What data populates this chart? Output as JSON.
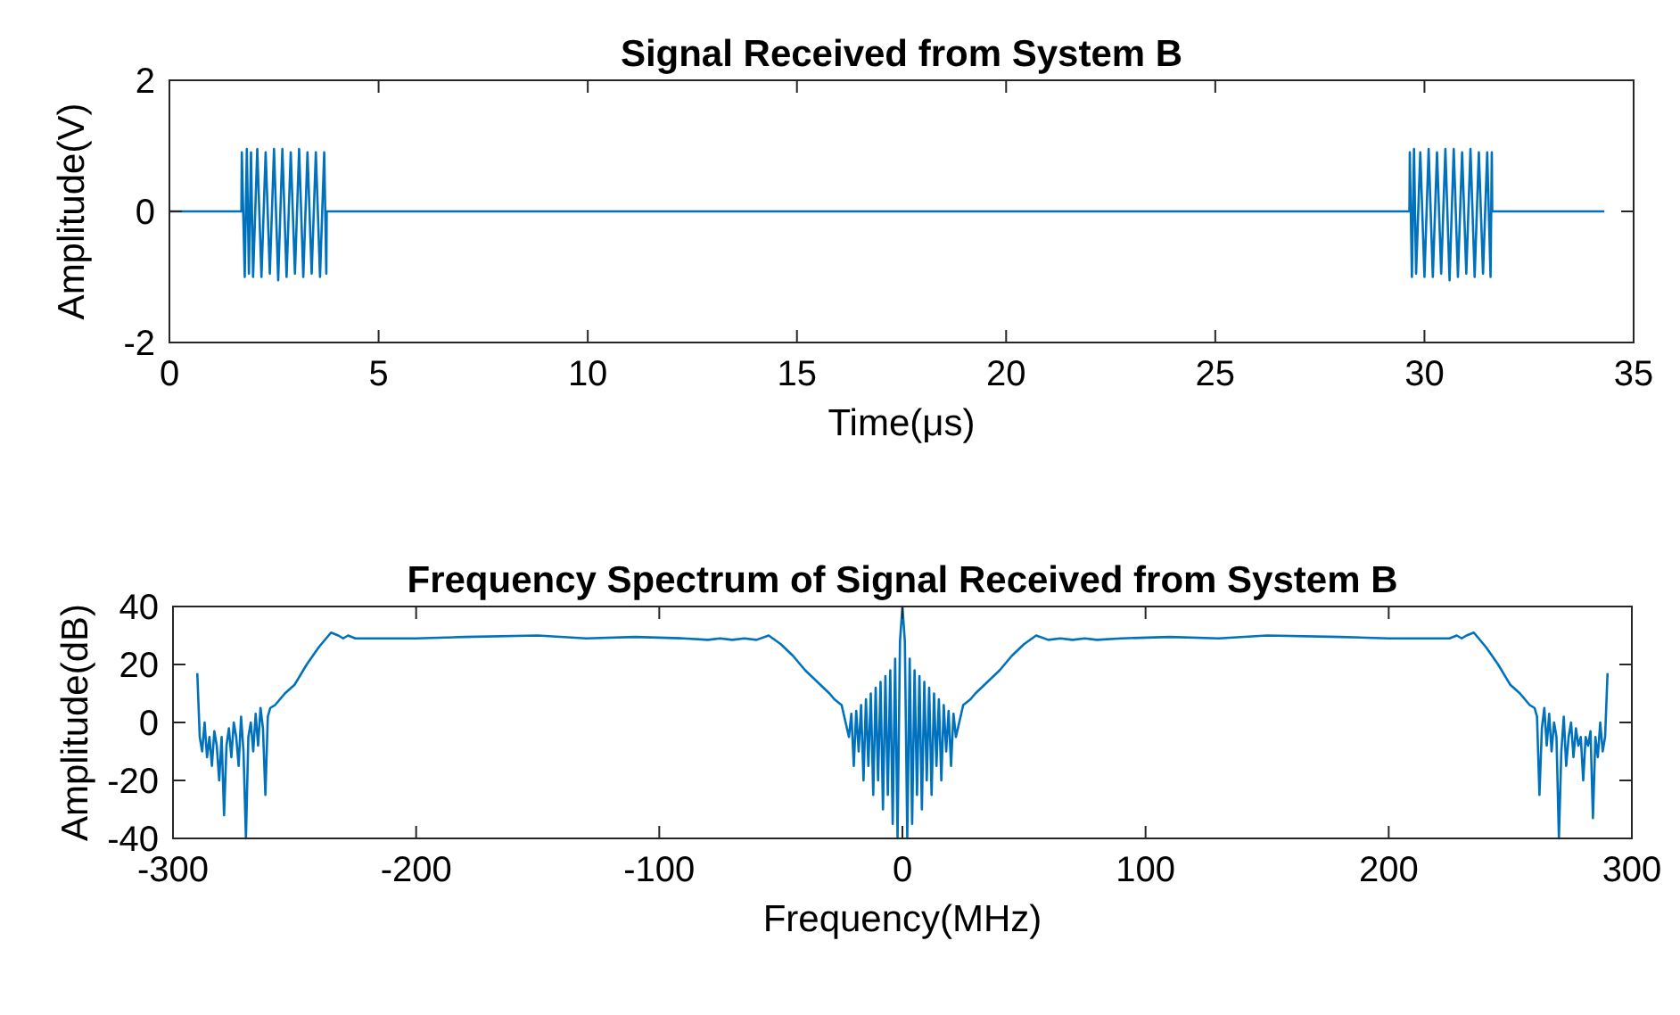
{
  "chart_data": [
    {
      "type": "line",
      "title": "Signal Received from System B",
      "xlabel": "Time(μs)",
      "ylabel": "Amplitude(V)",
      "xlim": [
        0,
        35
      ],
      "xticks": [
        0,
        5,
        10,
        15,
        20,
        25,
        30,
        35
      ],
      "ylim": [
        -2,
        2
      ],
      "yticks": [
        -2,
        0,
        2
      ],
      "grid": false,
      "marker": "none",
      "line_style": "solid",
      "series": [
        {
          "color": "#0072bd",
          "x": [
            0,
            1.0,
            1.72,
            1.73,
            1.8,
            1.85,
            1.9,
            1.95,
            2.0,
            2.1,
            2.2,
            2.3,
            2.4,
            2.5,
            2.6,
            2.7,
            2.8,
            2.9,
            3.0,
            3.1,
            3.2,
            3.3,
            3.4,
            3.5,
            3.6,
            3.7,
            3.75,
            3.76,
            10,
            20,
            29.64,
            29.65,
            29.7,
            29.75,
            29.8,
            29.9,
            30.0,
            30.1,
            30.2,
            30.3,
            30.4,
            30.5,
            30.6,
            30.7,
            30.8,
            30.9,
            31.0,
            31.1,
            31.2,
            31.3,
            31.4,
            31.5,
            31.58,
            31.61,
            31.62,
            34.3
          ],
          "values": [
            0,
            0,
            0,
            0.9,
            -1.0,
            0.95,
            -0.95,
            0.9,
            -1.0,
            0.95,
            -1.0,
            0.9,
            -0.95,
            0.95,
            -1.05,
            0.95,
            -1.0,
            0.9,
            -0.95,
            0.95,
            -1.0,
            0.9,
            -0.95,
            0.9,
            -1.0,
            0.9,
            -0.95,
            0,
            0,
            0,
            0,
            0.9,
            -1.0,
            0.95,
            -0.95,
            0.9,
            -1.0,
            0.95,
            -1.0,
            0.9,
            -0.95,
            0.95,
            -1.05,
            0.95,
            -1.0,
            0.9,
            -0.95,
            0.95,
            -1.0,
            0.9,
            -0.95,
            0.9,
            -1.0,
            0.9,
            0,
            0
          ]
        }
      ]
    },
    {
      "type": "line",
      "title": "Frequency Spectrum of Signal Received from System B",
      "xlabel": "Frequency(MHz)",
      "ylabel": "Amplitude(dB)",
      "xlim": [
        -300,
        300
      ],
      "xticks": [
        -300,
        -200,
        -100,
        0,
        100,
        200,
        300
      ],
      "ylim": [
        -40,
        40
      ],
      "yticks": [
        -40,
        -20,
        0,
        20,
        40
      ],
      "grid": false,
      "marker": "none",
      "line_style": "solid",
      "series": [
        {
          "color": "#0072bd",
          "x": [
            -290,
            -289,
            -288,
            -287,
            -286,
            -285,
            -284,
            -283,
            -282,
            -281,
            -280,
            -279,
            -278,
            -277,
            -276,
            -275,
            -274,
            -273,
            -272,
            -271,
            -270,
            -269,
            -268,
            -267,
            -266,
            -265,
            -264,
            -263,
            -262,
            -261,
            -260,
            -258,
            -256,
            -254,
            -250,
            -245,
            -240,
            -235,
            -232,
            -230,
            -228,
            -225,
            -200,
            -180,
            -150,
            -130,
            -110,
            -90,
            -80,
            -75,
            -70,
            -65,
            -60,
            -55,
            -50,
            -45,
            -40,
            -35,
            -30,
            -28,
            -25,
            -22,
            -21,
            -20,
            -19,
            -18,
            -17,
            -16,
            -15,
            -14,
            -13,
            -12,
            -11,
            -10,
            -9,
            -8,
            -7,
            -6,
            -5,
            -4,
            -3,
            -2,
            -1,
            0,
            1,
            2,
            3,
            4,
            5,
            6,
            7,
            8,
            9,
            10,
            11,
            12,
            13,
            14,
            15,
            16,
            17,
            18,
            19,
            20,
            21,
            22,
            25,
            28,
            30,
            35,
            40,
            45,
            50,
            55,
            60,
            65,
            70,
            75,
            80,
            90,
            110,
            130,
            150,
            180,
            200,
            225,
            228,
            230,
            232,
            235,
            240,
            245,
            250,
            254,
            256,
            258,
            260,
            261,
            262,
            263,
            264,
            265,
            266,
            267,
            268,
            269,
            270,
            271,
            272,
            273,
            274,
            275,
            276,
            277,
            278,
            279,
            280,
            281,
            282,
            283,
            284,
            285,
            286,
            287,
            288,
            289,
            290
          ],
          "values": [
            17,
            -5,
            -10,
            0,
            -12,
            -5,
            -15,
            -3,
            -8,
            -20,
            -5,
            -32,
            -8,
            -2,
            -12,
            0,
            -5,
            -15,
            2,
            -10,
            -40,
            -5,
            0,
            -10,
            3,
            -8,
            5,
            -2,
            -25,
            2,
            5,
            6,
            8,
            10,
            13,
            20,
            26,
            31,
            30,
            29,
            30,
            29,
            29,
            29.5,
            30,
            29,
            29.5,
            29,
            28.5,
            29,
            28.5,
            29,
            28.5,
            30,
            27,
            23,
            18,
            14,
            10,
            8,
            6,
            -5,
            3,
            -15,
            4,
            -10,
            6,
            -20,
            8,
            -15,
            10,
            -25,
            12,
            -20,
            14,
            -30,
            16,
            -25,
            18,
            -35,
            22,
            -40,
            28,
            40,
            28,
            -40,
            22,
            -35,
            18,
            -25,
            16,
            -30,
            14,
            -20,
            12,
            -25,
            10,
            -15,
            8,
            -20,
            6,
            -10,
            4,
            -15,
            3,
            -5,
            6,
            8,
            10,
            14,
            18,
            23,
            27,
            30,
            28.5,
            29,
            28.5,
            29,
            28.5,
            29,
            29.5,
            29,
            30,
            29.5,
            29,
            29,
            30,
            29,
            30,
            31,
            26,
            20,
            13,
            10,
            8,
            6,
            5,
            2,
            -25,
            -2,
            5,
            -8,
            3,
            -10,
            0,
            -5,
            -40,
            -10,
            2,
            -15,
            -5,
            0,
            -12,
            -2,
            -8,
            -5,
            -20,
            -5,
            -8,
            -3,
            -33,
            -5,
            -12,
            0,
            -10,
            -5,
            17
          ]
        }
      ]
    }
  ]
}
